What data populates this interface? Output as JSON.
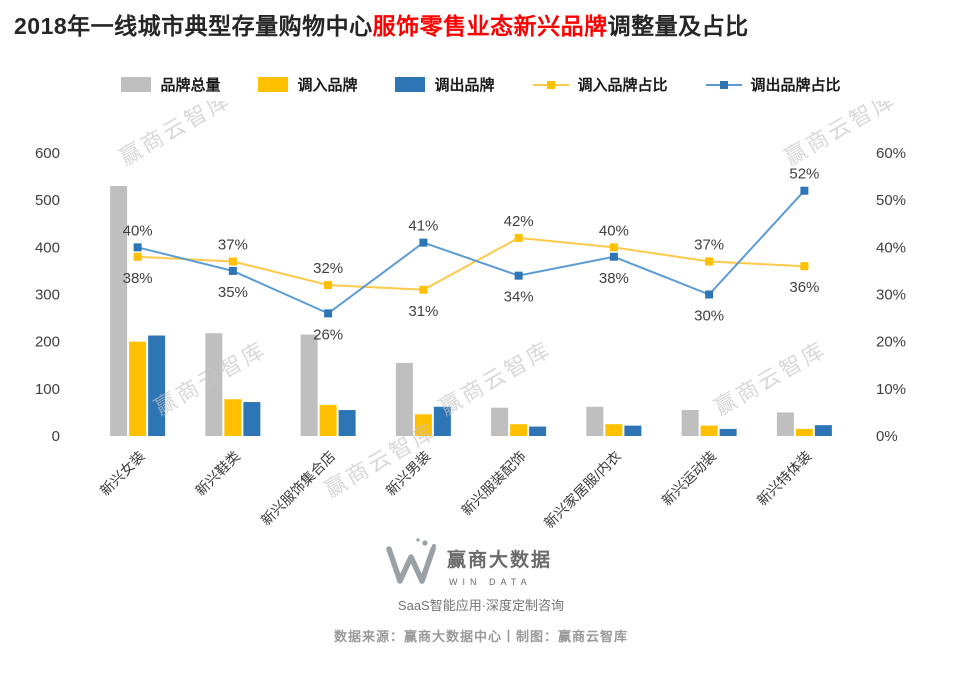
{
  "title": {
    "prefix": "2018年一线城市典型存量购物中心",
    "highlight": "服饰零售业态新兴品牌",
    "suffix": "调整量及占比",
    "highlight_color": "#FF0000"
  },
  "legend": [
    {
      "label": "品牌总量",
      "type": "bar",
      "color": "#BFBFBF"
    },
    {
      "label": "调入品牌",
      "type": "bar",
      "color": "#FFC000"
    },
    {
      "label": "调出品牌",
      "type": "bar",
      "color": "#2E75B6"
    },
    {
      "label": "调入品牌占比",
      "type": "line",
      "color": "#FFC94A",
      "marker_color": "#FFC000"
    },
    {
      "label": "调出品牌占比",
      "type": "line",
      "color": "#5B9BD5",
      "marker_color": "#2E75B6"
    }
  ],
  "chart_data": {
    "type": "combo-bar-line",
    "categories": [
      "新兴女装",
      "新兴鞋类",
      "新兴服饰集合店",
      "新兴男装",
      "新兴服装配饰",
      "新兴家居服/内衣",
      "新兴运动装",
      "新兴特体装"
    ],
    "bar_series": [
      {
        "key": "total",
        "name": "品牌总量",
        "color": "#BFBFBF",
        "values": [
          530,
          218,
          215,
          155,
          60,
          62,
          55,
          50
        ]
      },
      {
        "key": "in",
        "name": "调入品牌",
        "color": "#FFC000",
        "values": [
          200,
          78,
          66,
          46,
          25,
          25,
          22,
          15
        ]
      },
      {
        "key": "out",
        "name": "调出品牌",
        "color": "#2E75B6",
        "values": [
          213,
          72,
          55,
          62,
          20,
          22,
          15,
          23
        ]
      }
    ],
    "line_series": [
      {
        "key": "in_pct",
        "name": "调入品牌占比",
        "color": "#FFC94A",
        "marker_color": "#FFC000",
        "values_pct": [
          38,
          37,
          32,
          31,
          42,
          40,
          37,
          36
        ]
      },
      {
        "key": "out_pct",
        "name": "调出品牌占比",
        "color": "#5B9BD5",
        "marker_color": "#2E75B6",
        "values_pct": [
          40,
          35,
          26,
          41,
          34,
          38,
          30,
          52
        ]
      }
    ],
    "left_axis": {
      "ticks": [
        "600",
        "500",
        "400",
        "300",
        "200",
        "100",
        "0"
      ],
      "max": 600
    },
    "right_axis": {
      "ticks": [
        "60%",
        "50%",
        "40%",
        "30%",
        "20%",
        "10%",
        "0%"
      ],
      "max": 60
    },
    "grid": false,
    "legend_position": "top"
  },
  "watermark": {
    "text": "赢商云智库"
  },
  "footer": {
    "brand_cn": "赢商大数据",
    "brand_en": "WIN DATA",
    "tagline": "SaaS智能应用·深度定制咨询",
    "source_line": "数据来源：赢商大数据中心丨制图：赢商云智库"
  }
}
